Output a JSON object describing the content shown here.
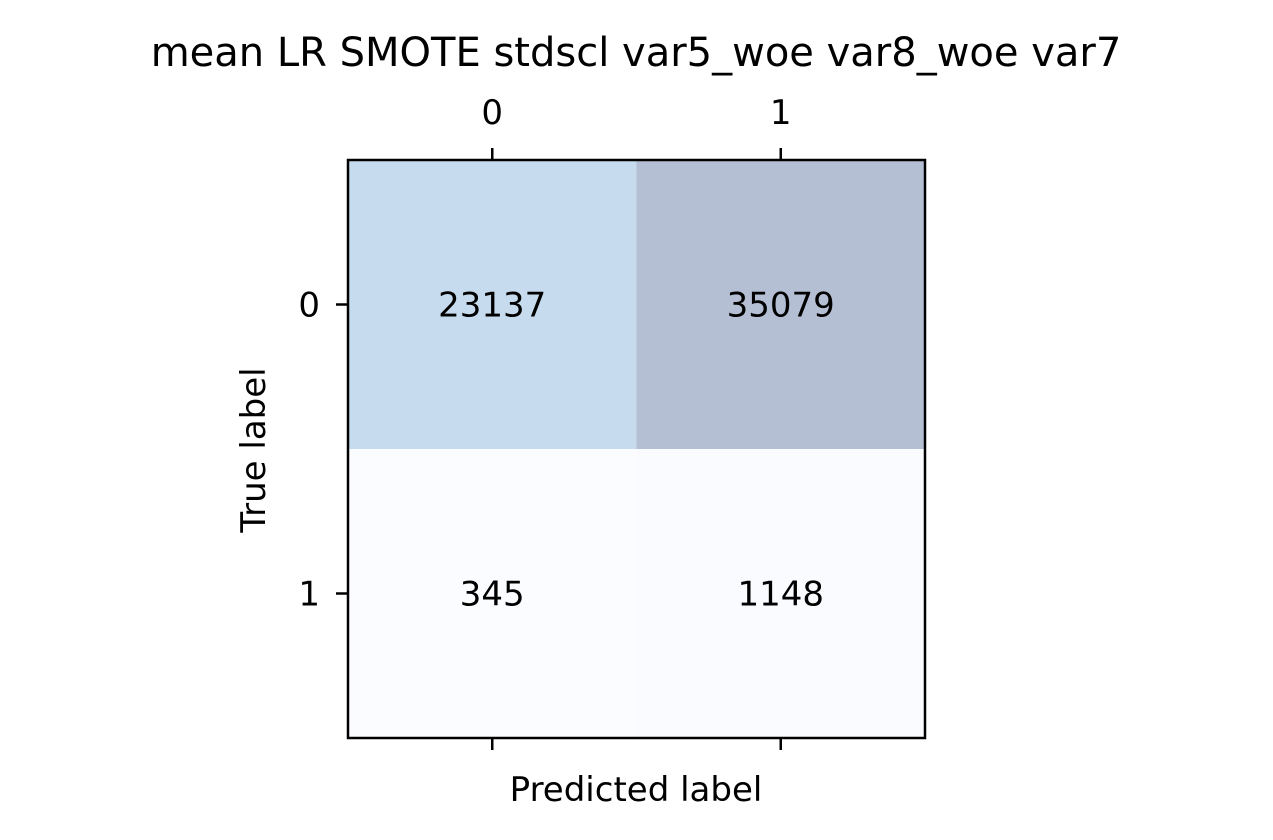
{
  "chart_data": {
    "type": "heatmap",
    "title": "mean LR SMOTE stdscl var5_woe var8_woe var7",
    "xlabel": "Predicted label",
    "ylabel": "True label",
    "x_categories": [
      "0",
      "1"
    ],
    "y_categories": [
      "0",
      "1"
    ],
    "x_tick_position": "top",
    "grid": false,
    "values": [
      [
        23137,
        35079
      ],
      [
        345,
        1148
      ]
    ],
    "value_labels": [
      [
        "23137",
        "35079"
      ],
      [
        "345",
        "1148"
      ]
    ],
    "colors": [
      [
        "#c6dbed",
        "#b4bfd3"
      ],
      [
        "#fbfcff",
        "#f9fbfe"
      ]
    ]
  }
}
